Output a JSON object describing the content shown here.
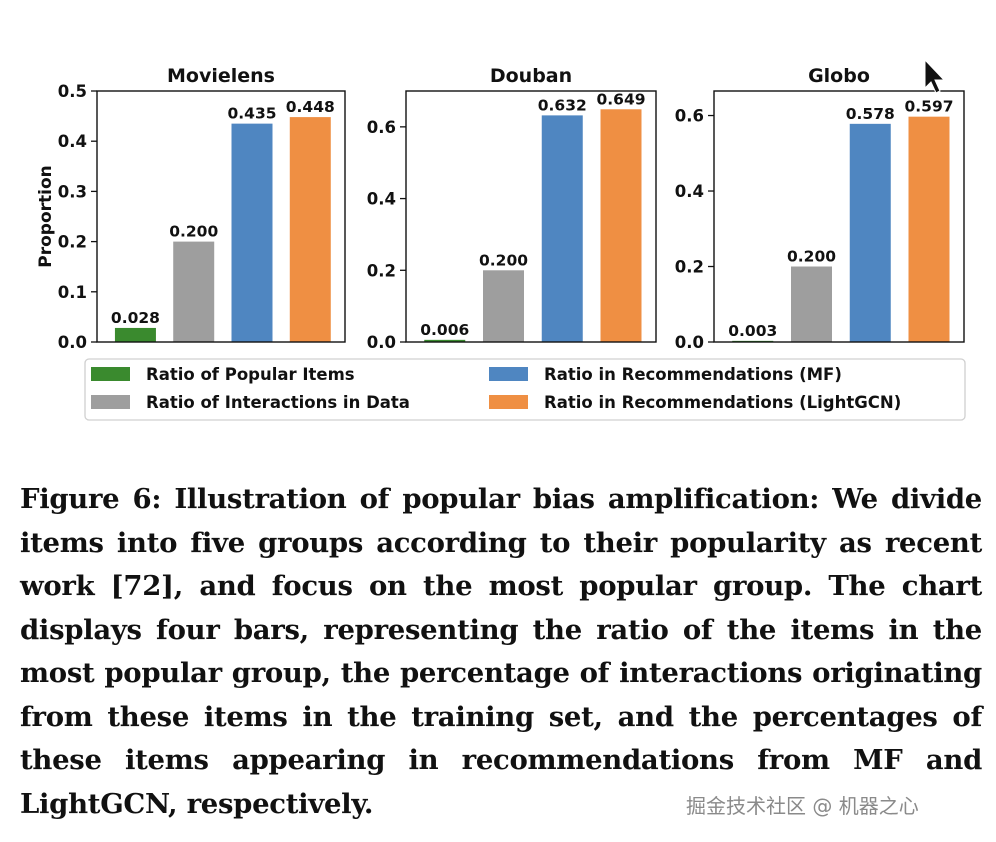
{
  "chart_data": [
    {
      "type": "bar",
      "title": "Movielens",
      "ylabel": "Proportion",
      "xlabel": "",
      "ylim": [
        0,
        0.5
      ],
      "yticks": [
        "0.0",
        "0.1",
        "0.2",
        "0.3",
        "0.4",
        "0.5"
      ],
      "ytick_values": [
        0,
        0.1,
        0.2,
        0.3,
        0.4,
        0.5
      ],
      "series": [
        {
          "name": "Ratio of Popular Items",
          "value": 0.028,
          "label": "0.028"
        },
        {
          "name": "Ratio of Interactions in Data",
          "value": 0.2,
          "label": "0.200"
        },
        {
          "name": "Ratio in Recommendations (MF)",
          "value": 0.435,
          "label": "0.435"
        },
        {
          "name": "Ratio in Recommendations (LightGCN)",
          "value": 0.448,
          "label": "0.448"
        }
      ]
    },
    {
      "type": "bar",
      "title": "Douban",
      "ylabel": "",
      "xlabel": "",
      "ylim": [
        0,
        0.7
      ],
      "yticks": [
        "0.0",
        "0.2",
        "0.4",
        "0.6"
      ],
      "ytick_values": [
        0,
        0.2,
        0.4,
        0.6
      ],
      "series": [
        {
          "name": "Ratio of Popular Items",
          "value": 0.006,
          "label": "0.006"
        },
        {
          "name": "Ratio of Interactions in Data",
          "value": 0.2,
          "label": "0.200"
        },
        {
          "name": "Ratio in Recommendations (MF)",
          "value": 0.632,
          "label": "0.632"
        },
        {
          "name": "Ratio in Recommendations (LightGCN)",
          "value": 0.649,
          "label": "0.649"
        }
      ]
    },
    {
      "type": "bar",
      "title": "Globo",
      "ylabel": "",
      "xlabel": "",
      "ylim": [
        0,
        0.665
      ],
      "yticks": [
        "0.0",
        "0.2",
        "0.4",
        "0.6"
      ],
      "ytick_values": [
        0,
        0.2,
        0.4,
        0.6
      ],
      "series": [
        {
          "name": "Ratio of Popular Items",
          "value": 0.003,
          "label": "0.003"
        },
        {
          "name": "Ratio of Interactions in Data",
          "value": 0.2,
          "label": "0.200"
        },
        {
          "name": "Ratio in Recommendations (MF)",
          "value": 0.578,
          "label": "0.578"
        },
        {
          "name": "Ratio in Recommendations (LightGCN)",
          "value": 0.597,
          "label": "0.597"
        }
      ]
    }
  ],
  "legend": [
    {
      "name": "Ratio of Popular Items",
      "color": "#3a8a2e"
    },
    {
      "name": "Ratio in Recommendations (MF)",
      "color": "#4f86c1"
    },
    {
      "name": "Ratio of Interactions in Data",
      "color": "#9e9e9e"
    },
    {
      "name": "Ratio in Recommendations (LightGCN)",
      "color": "#ef8f43"
    }
  ],
  "colors": [
    "#3a8a2e",
    "#9e9e9e",
    "#4f86c1",
    "#ef8f43"
  ],
  "caption": "Figure 6: Illustration of popular bias amplification: We divide items into five groups according to their popularity as recent work [72], and focus on the most popular group. The chart displays four bars, representing the ratio of the items in the most popular group, the percentage of interactions originating from these items in the training set, and the percentages of these items appearing in recommendations from MF and LightGCN, respectively.",
  "watermark": "掘金技术社区 @ 机器之心",
  "cursor_icon": "mouse-pointer-icon"
}
